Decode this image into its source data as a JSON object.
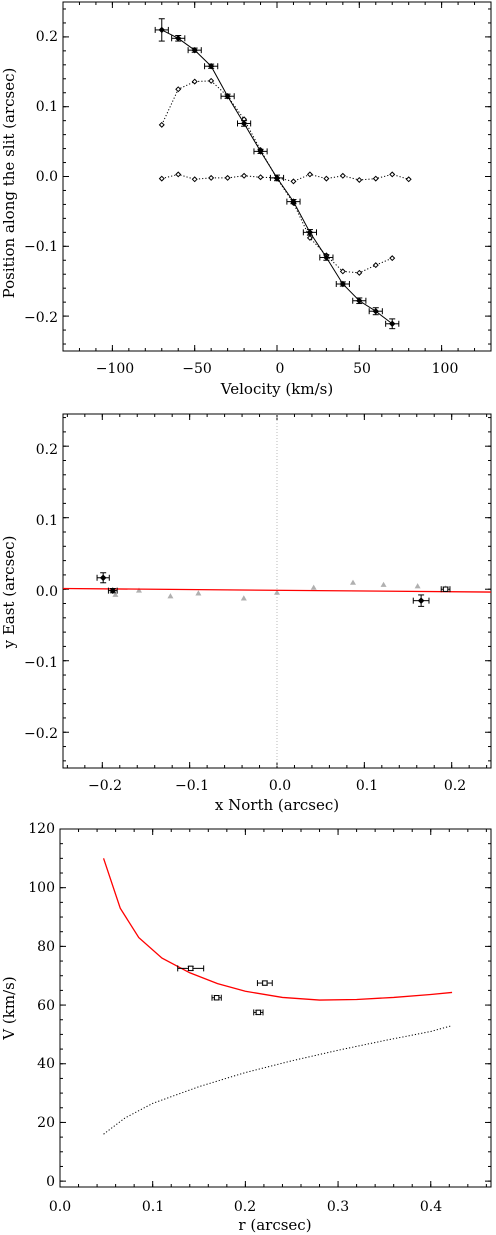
{
  "chart_data": [
    {
      "type": "line",
      "xlabel": "Velocity (km/s)",
      "ylabel": "Position along the slit (arcsec)",
      "xlim": [
        -130,
        130
      ],
      "ylim": [
        -0.25,
        0.25
      ],
      "x_ticks": [
        -100,
        -50,
        0,
        50,
        100
      ],
      "y_ticks": [
        -0.2,
        -0.1,
        0.0,
        0.1,
        0.2
      ],
      "x_tick_labels": [
        "−100",
        "−50",
        "0",
        "50",
        "100"
      ],
      "y_tick_labels": [
        "−0.2",
        "−0.1",
        "0.0",
        "0.1",
        "0.2"
      ],
      "series": [
        {
          "style": "solid line with error bars",
          "points": [
            {
              "x": -70,
              "y": 0.21,
              "xerr": 4,
              "yerr": 0.016
            },
            {
              "x": -60,
              "y": 0.198,
              "xerr": 4,
              "yerr": 0.004
            },
            {
              "x": -50,
              "y": 0.181,
              "xerr": 4,
              "yerr": 0.003
            },
            {
              "x": -40,
              "y": 0.158,
              "xerr": 4,
              "yerr": 0.003
            },
            {
              "x": -30,
              "y": 0.115,
              "xerr": 4,
              "yerr": 0.003
            },
            {
              "x": -20,
              "y": 0.076,
              "xerr": 4,
              "yerr": 0.004
            },
            {
              "x": -10,
              "y": 0.036,
              "xerr": 4,
              "yerr": 0.003
            },
            {
              "x": 0,
              "y": -0.002,
              "xerr": 4,
              "yerr": 0.004
            },
            {
              "x": 10,
              "y": -0.036,
              "xerr": 4,
              "yerr": 0.003
            },
            {
              "x": 20,
              "y": -0.08,
              "xerr": 4,
              "yerr": 0.004
            },
            {
              "x": 30,
              "y": -0.116,
              "xerr": 4,
              "yerr": 0.004
            },
            {
              "x": 40,
              "y": -0.154,
              "xerr": 4,
              "yerr": 0.003
            },
            {
              "x": 50,
              "y": -0.178,
              "xerr": 4,
              "yerr": 0.004
            },
            {
              "x": 60,
              "y": -0.193,
              "xerr": 4,
              "yerr": 0.005
            },
            {
              "x": 70,
              "y": -0.211,
              "xerr": 4,
              "yerr": 0.007
            }
          ]
        },
        {
          "style": "dotted line with open diamonds",
          "points": [
            {
              "x": -70,
              "y": 0.074
            },
            {
              "x": -60,
              "y": 0.125
            },
            {
              "x": -50,
              "y": 0.136
            },
            {
              "x": -40,
              "y": 0.137
            },
            {
              "x": -30,
              "y": 0.115
            },
            {
              "x": -20,
              "y": 0.082
            },
            {
              "x": -10,
              "y": 0.038
            },
            {
              "x": 0,
              "y": -0.003
            },
            {
              "x": 10,
              "y": -0.038
            },
            {
              "x": 20,
              "y": -0.088
            },
            {
              "x": 30,
              "y": -0.113
            },
            {
              "x": 40,
              "y": -0.136
            },
            {
              "x": 50,
              "y": -0.138
            },
            {
              "x": 60,
              "y": -0.127
            },
            {
              "x": 70,
              "y": -0.117
            }
          ]
        },
        {
          "style": "dotted line with open diamonds",
          "points": [
            {
              "x": -70,
              "y": -0.003
            },
            {
              "x": -60,
              "y": 0.003
            },
            {
              "x": -50,
              "y": -0.004
            },
            {
              "x": -40,
              "y": -0.002
            },
            {
              "x": -30,
              "y": -0.002
            },
            {
              "x": -20,
              "y": 0.001
            },
            {
              "x": -10,
              "y": -0.001
            },
            {
              "x": 0,
              "y": -0.002
            },
            {
              "x": 10,
              "y": -0.007
            },
            {
              "x": 20,
              "y": 0.003
            },
            {
              "x": 30,
              "y": -0.003
            },
            {
              "x": 40,
              "y": 0.001
            },
            {
              "x": 50,
              "y": -0.005
            },
            {
              "x": 60,
              "y": -0.003
            },
            {
              "x": 70,
              "y": 0.003
            },
            {
              "x": 80,
              "y": -0.004
            }
          ]
        }
      ]
    },
    {
      "type": "scatter",
      "xlabel": "x North (arcsec)",
      "ylabel": "y East (arcsec)",
      "xlim": [
        -0.245,
        0.245
      ],
      "ylim": [
        -0.25,
        0.245
      ],
      "x_ticks": [
        -0.2,
        -0.1,
        0.0,
        0.1,
        0.2
      ],
      "y_ticks": [
        -0.2,
        -0.1,
        0.0,
        0.1,
        0.2
      ],
      "x_tick_labels": [
        "−0.2",
        "−0.1",
        "0.0",
        "0.1",
        "0.2"
      ],
      "y_tick_labels": [
        "−0.2",
        "−0.1",
        "0.0",
        "0.1",
        "0.2"
      ],
      "vertical_reference_x": 0.0,
      "fit_line": {
        "color": "#ff0000",
        "x": [
          -0.245,
          0.245
        ],
        "y": [
          0.001,
          -0.004
        ]
      },
      "gray_points_color": "#b0b0b0",
      "gray_points": [
        {
          "x": -0.185,
          "y": -0.008
        },
        {
          "x": -0.158,
          "y": -0.002
        },
        {
          "x": -0.122,
          "y": -0.01
        },
        {
          "x": -0.09,
          "y": -0.006
        },
        {
          "x": -0.038,
          "y": -0.013
        },
        {
          "x": 0.0,
          "y": -0.005
        },
        {
          "x": 0.042,
          "y": 0.002
        },
        {
          "x": 0.087,
          "y": 0.009
        },
        {
          "x": 0.122,
          "y": 0.006
        },
        {
          "x": 0.161,
          "y": 0.004
        },
        {
          "x": 0.193,
          "y": 0.001
        }
      ],
      "points": [
        {
          "x": -0.199,
          "y": 0.016,
          "xerr": 0.007,
          "yerr": 0.007,
          "marker": "filled"
        },
        {
          "x": -0.188,
          "y": -0.002,
          "xerr": 0.005,
          "yerr": 0.003,
          "marker": "filled"
        },
        {
          "x": 0.165,
          "y": -0.016,
          "xerr": 0.009,
          "yerr": 0.008,
          "marker": "filled"
        },
        {
          "x": 0.193,
          "y": 0.0,
          "xerr": 0.005,
          "yerr": 0.003,
          "marker": "open"
        }
      ]
    },
    {
      "type": "line",
      "xlabel": "r (arcsec)",
      "ylabel": "V (km/s)",
      "xlim": [
        0.0,
        0.465
      ],
      "ylim": [
        -2,
        120
      ],
      "x_ticks": [
        0.0,
        0.1,
        0.2,
        0.3,
        0.4
      ],
      "y_ticks": [
        0,
        20,
        40,
        60,
        80,
        100,
        120
      ],
      "x_tick_labels": [
        "0.0",
        "0.1",
        "0.2",
        "0.3",
        "0.4"
      ],
      "y_tick_labels": [
        "0",
        "20",
        "40",
        "60",
        "80",
        "100",
        "120"
      ],
      "series": [
        {
          "style": "solid red",
          "color": "#ff0000",
          "x": [
            0.047,
            0.065,
            0.085,
            0.11,
            0.14,
            0.17,
            0.2,
            0.24,
            0.28,
            0.32,
            0.36,
            0.4,
            0.423
          ],
          "y": [
            110,
            93,
            83,
            76,
            71,
            67.3,
            64.7,
            62.6,
            61.7,
            61.9,
            62.6,
            63.6,
            64.3
          ]
        },
        {
          "style": "dotted black",
          "color": "#000000",
          "x": [
            0.047,
            0.07,
            0.1,
            0.15,
            0.2,
            0.25,
            0.3,
            0.35,
            0.4,
            0.423
          ],
          "y": [
            16,
            21.5,
            26.5,
            32.2,
            37,
            41,
            44.6,
            47.9,
            51,
            53
          ]
        }
      ],
      "points": [
        {
          "x": 0.141,
          "y": 72.5,
          "xerr": 0.014,
          "yerr": 0.7
        },
        {
          "x": 0.169,
          "y": 62.5,
          "xerr": 0.005,
          "yerr": 0.7
        },
        {
          "x": 0.214,
          "y": 57.5,
          "xerr": 0.005,
          "yerr": 0.7
        },
        {
          "x": 0.221,
          "y": 67.5,
          "xerr": 0.008,
          "yerr": 0.7
        }
      ]
    }
  ]
}
